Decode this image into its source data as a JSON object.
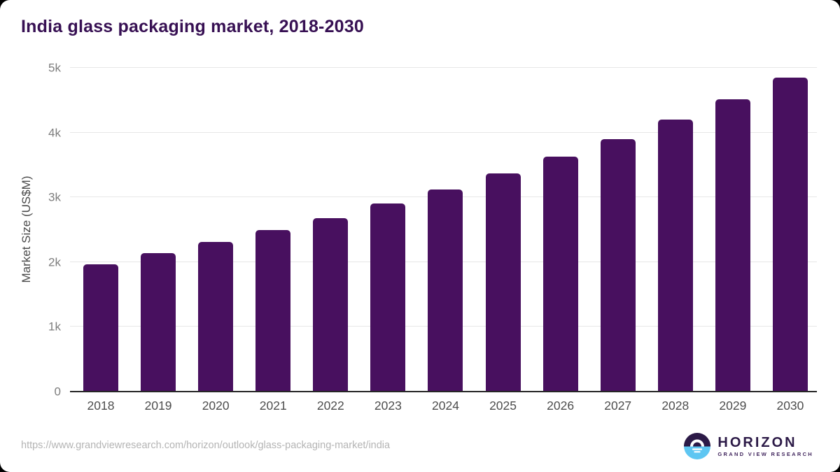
{
  "chart_data": {
    "type": "bar",
    "title": "India glass packaging market, 2018-2030",
    "ylabel": "Market Size (US$M)",
    "categories": [
      "2018",
      "2019",
      "2020",
      "2021",
      "2022",
      "2023",
      "2024",
      "2025",
      "2026",
      "2027",
      "2028",
      "2029",
      "2030"
    ],
    "values": [
      1970,
      2140,
      2310,
      2490,
      2680,
      2900,
      3120,
      3370,
      3630,
      3900,
      4200,
      4510,
      4850
    ],
    "ylim": [
      0,
      5000
    ],
    "yticks": [
      {
        "value": 0,
        "label": "0"
      },
      {
        "value": 1000,
        "label": "1k"
      },
      {
        "value": 2000,
        "label": "2k"
      },
      {
        "value": 3000,
        "label": "3k"
      },
      {
        "value": 4000,
        "label": "4k"
      },
      {
        "value": 5000,
        "label": "5k"
      }
    ],
    "grid": true,
    "legend": "none",
    "bar_color": "#48105f"
  },
  "colors": {
    "title": "#371053",
    "bar": "#48105f",
    "gridline": "#e7e7e7",
    "axis_line": "#262626",
    "tick_label": "#7d7d7d",
    "x_label": "#4d4d4d",
    "url_text": "#b4b4b4",
    "logo_dark_purple": "#2c1a47",
    "logo_sky_blue": "#5ec6f2"
  },
  "footer": {
    "url": "https://www.grandviewresearch.com/horizon/outlook/glass-packaging-market/india",
    "logo": {
      "brand": "HORIZON",
      "sub": "GRAND VIEW RESEARCH"
    }
  }
}
